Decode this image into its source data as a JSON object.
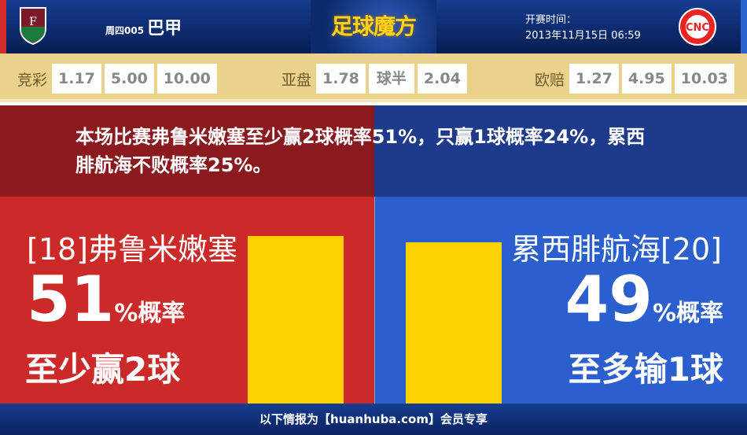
{
  "header": {
    "league_code": "周四005",
    "league_name": "巴甲",
    "brand": "足球魔方",
    "time_label": "开赛时间：",
    "time_value": "2013年11月15日 06:59"
  },
  "odds": {
    "jingcai": {
      "label": "竞彩",
      "values": [
        "1.17",
        "5.00",
        "10.00"
      ]
    },
    "yapan": {
      "label": "亚盘",
      "values": [
        "1.78",
        "球半",
        "2.04"
      ]
    },
    "oupei": {
      "label": "欧赔",
      "values": [
        "1.27",
        "4.95",
        "10.03"
      ]
    }
  },
  "summary": "本场比赛弗鲁米嫩塞至少赢2球概率51%，只赢1球概率24%，累西腓航海不败概率25%。",
  "home": {
    "team": "[18]弗鲁米嫩塞",
    "percent": "51",
    "percent_suffix": "%概率",
    "result": "至少赢2球",
    "color": "#cc2a29"
  },
  "away": {
    "team": "累西腓航海[20]",
    "percent": "49",
    "percent_suffix": "%概率",
    "result": "至多输1球",
    "color": "#2a5fcd"
  },
  "chart_data": {
    "type": "bar",
    "categories": [
      "弗鲁米嫩塞",
      "累西腓航海"
    ],
    "values": [
      51,
      49
    ],
    "color": "#fed200"
  },
  "footer": "以下情报为【huanhuba.com】会员专享"
}
